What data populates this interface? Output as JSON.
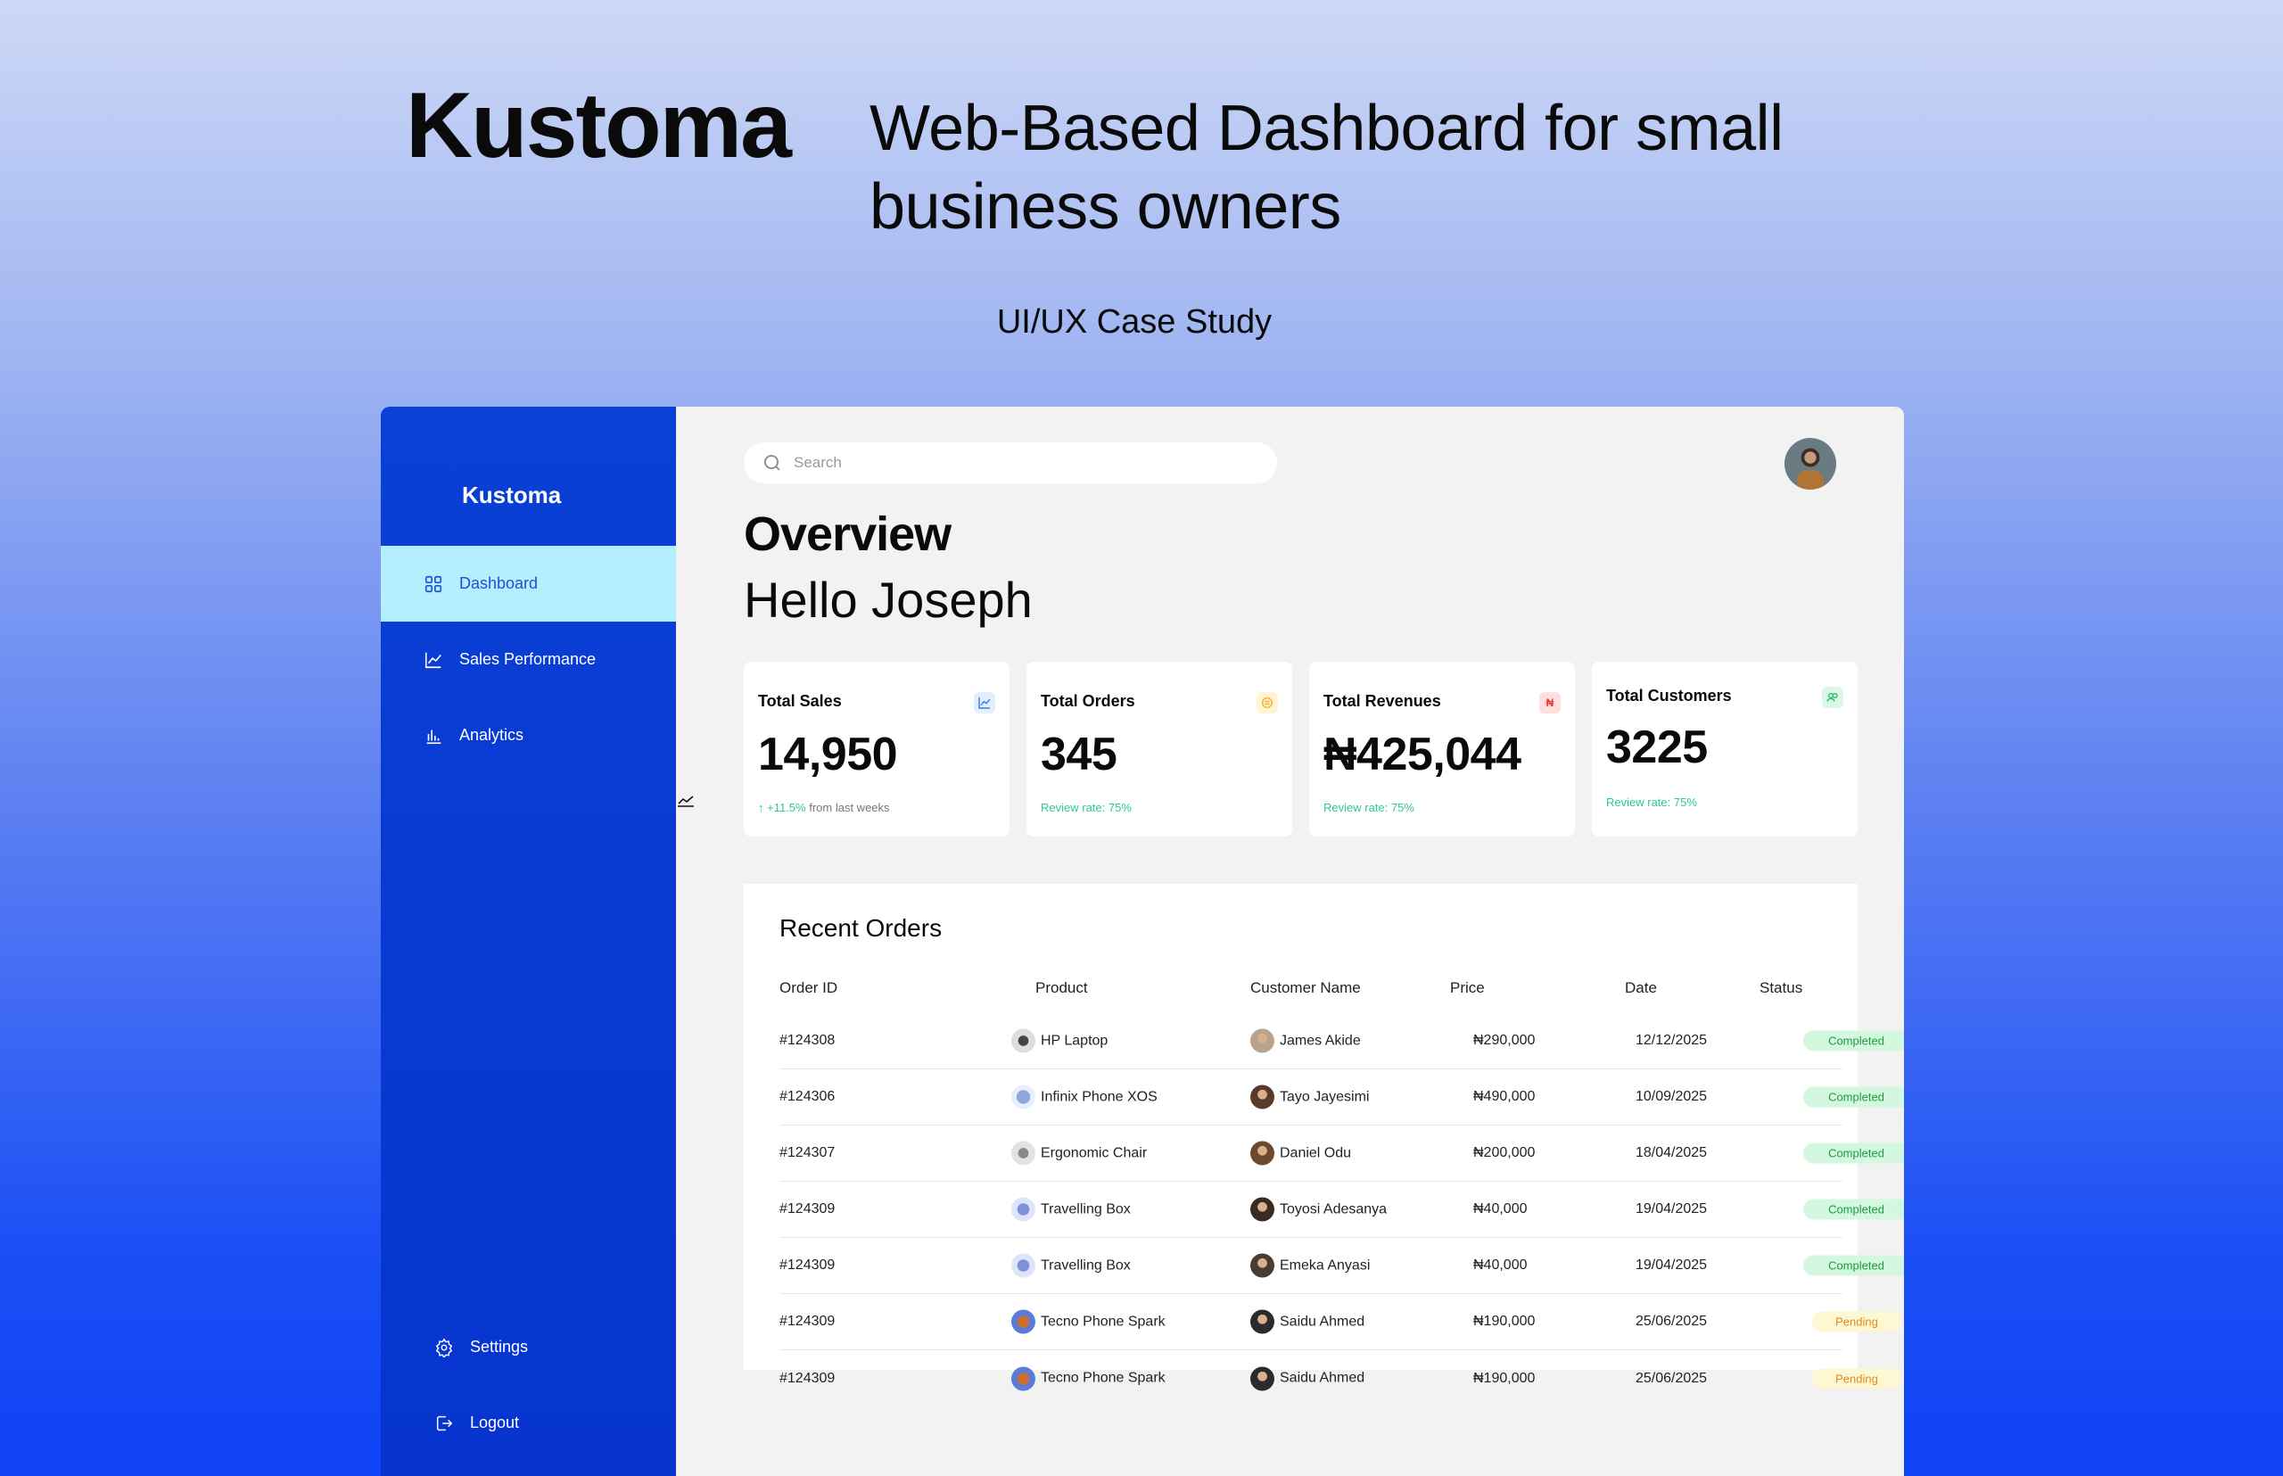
{
  "hero": {
    "brand": "Kustoma",
    "tagline": "Web-Based Dashboard for small business owners",
    "subtitle": "UI/UX Case Study"
  },
  "sidebar": {
    "logo": "Kustoma",
    "items": [
      {
        "label": "Dashboard",
        "icon": "grid-icon",
        "active": true
      },
      {
        "label": "Sales Performance",
        "icon": "line-chart-icon"
      },
      {
        "label": "Analytics",
        "icon": "bar-chart-icon"
      }
    ],
    "bottom": [
      {
        "label": "Settings",
        "icon": "gear-icon"
      },
      {
        "label": "Logout",
        "icon": "logout-icon"
      }
    ]
  },
  "search": {
    "placeholder": "Search"
  },
  "overview": {
    "title": "Overview",
    "greeting": "Hello Joseph"
  },
  "cards": [
    {
      "label": "Total Sales",
      "value": "14,950",
      "sub_highlight": "↑ +11.5%",
      "sub_rest": " from last weeks",
      "icon": "trend-icon",
      "icon_bg": "#e3efff",
      "icon_color": "#3a7be0"
    },
    {
      "label": "Total Orders",
      "value": "345",
      "sub_highlight": "Review rate: 75%",
      "sub_rest": "",
      "icon": "box-icon",
      "icon_bg": "#fff4d6",
      "icon_color": "#f0b429"
    },
    {
      "label": "Total Revenues",
      "value": "₦425,044",
      "sub_highlight": "Review rate: 75%",
      "sub_rest": "",
      "icon": "naira-icon",
      "icon_bg": "#ffdede",
      "icon_color": "#e03a3a",
      "icon_glyph": "₦"
    },
    {
      "label": "Total Customers",
      "value": "3225",
      "sub_highlight": "Review rate: 75%",
      "sub_rest": "",
      "icon": "users-icon",
      "icon_bg": "#ddf7e6",
      "icon_color": "#2fbf6b"
    }
  ],
  "orders": {
    "title": "Recent Orders",
    "columns": [
      "Order ID",
      "Product",
      "Customer Name",
      "Price",
      "Date",
      "Status"
    ],
    "rows": [
      {
        "id": "#124308",
        "product": "HP Laptop",
        "customer": "James Akide",
        "price": "₦290,000",
        "date": "12/12/2025",
        "status": "Completed"
      },
      {
        "id": "#124306",
        "product": "Infinix Phone XOS",
        "customer": "Tayo Jayesimi",
        "price": "₦490,000",
        "date": "10/09/2025",
        "status": "Completed"
      },
      {
        "id": "#124307",
        "product": "Ergonomic Chair",
        "customer": "Daniel Odu",
        "price": "₦200,000",
        "date": "18/04/2025",
        "status": "Completed"
      },
      {
        "id": "#124309",
        "product": "Travelling Box",
        "customer": "Toyosi Adesanya",
        "price": "₦40,000",
        "date": "19/04/2025",
        "status": "Completed"
      },
      {
        "id": "#124309",
        "product": "Travelling Box",
        "customer": "Emeka Anyasi",
        "price": "₦40,000",
        "date": "19/04/2025",
        "status": "Completed"
      },
      {
        "id": "#124309",
        "product": "Tecno Phone Spark",
        "customer": "Saidu Ahmed",
        "price": "₦190,000",
        "date": "25/06/2025",
        "status": "Pending"
      },
      {
        "id": "#124309",
        "product": "Tecno Phone Spark",
        "customer": "Saidu Ahmed",
        "price": "₦190,000",
        "date": "25/06/2025",
        "status": "Pending"
      }
    ]
  }
}
